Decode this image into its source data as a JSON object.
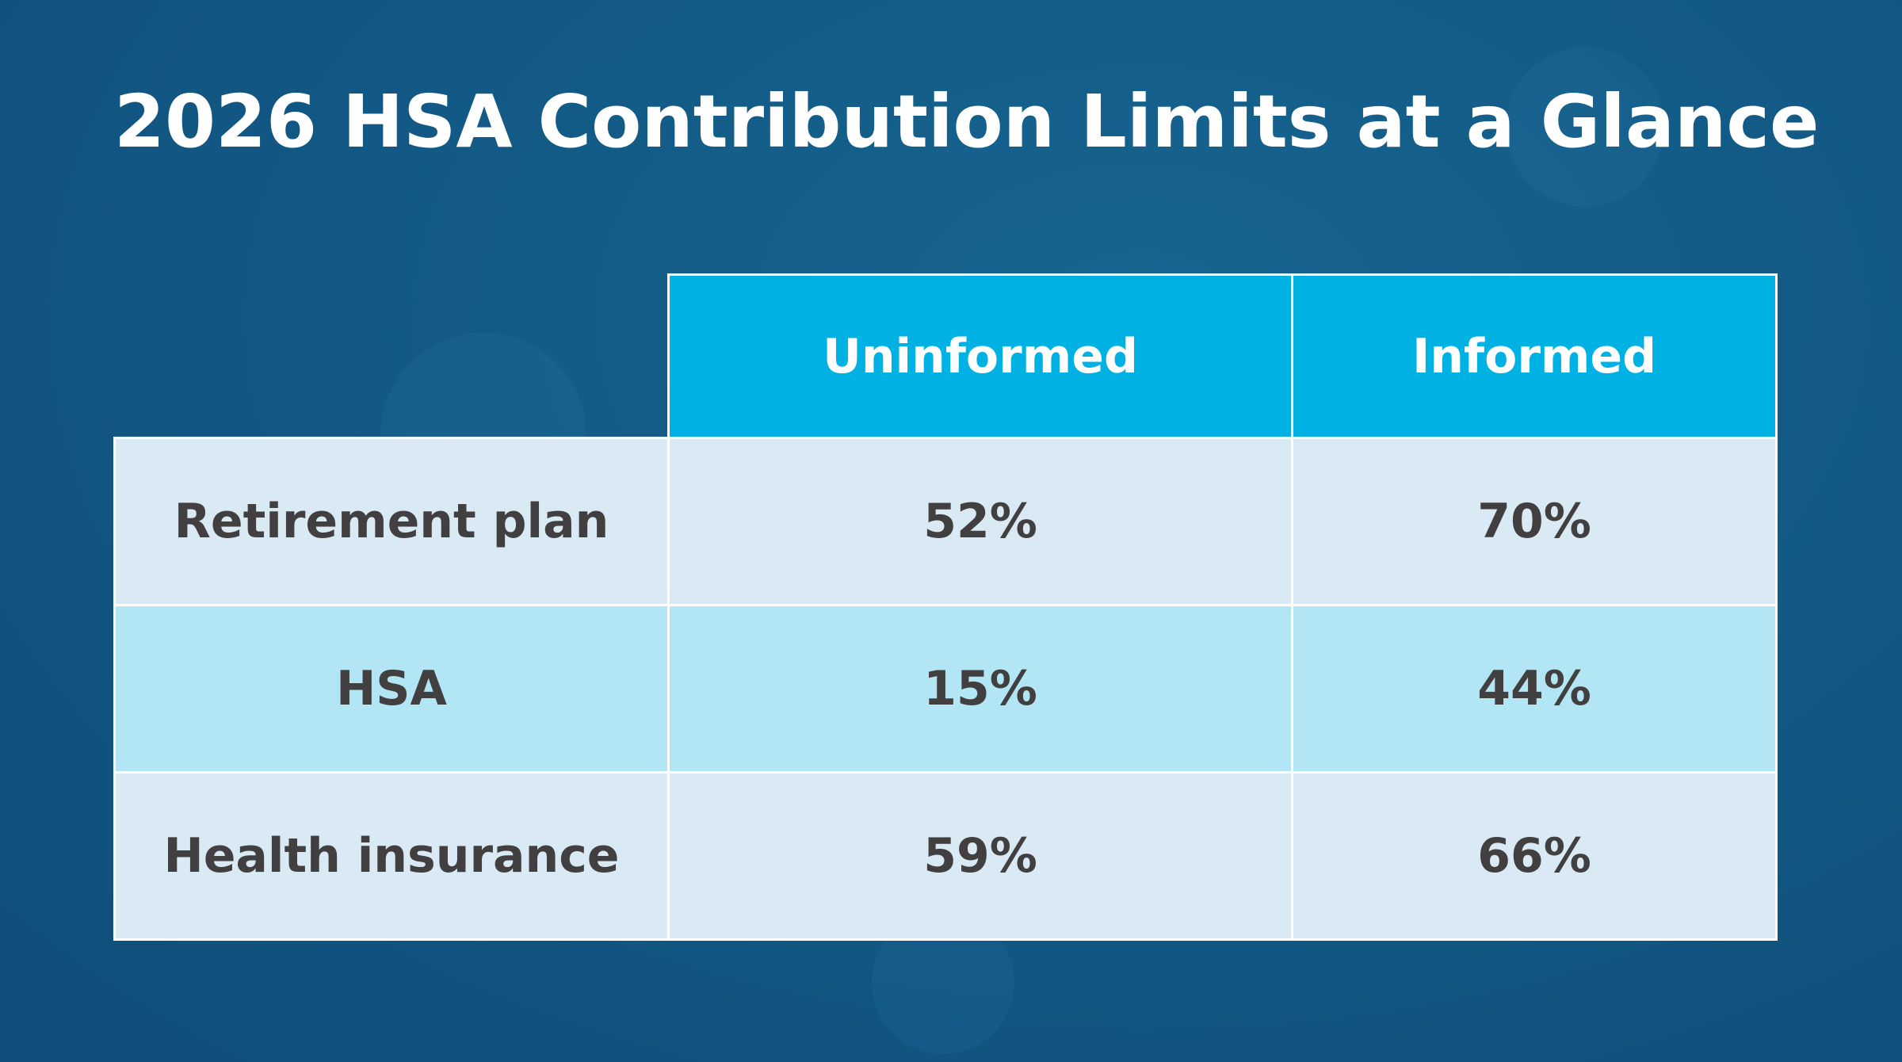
{
  "title": "2026 HSA Contribution Limits at a Glance",
  "table": {
    "columns": [
      "",
      "Uninformed",
      "Informed"
    ],
    "rows": [
      {
        "label": "Retirement plan",
        "uninformed": "52%",
        "informed": "70%"
      },
      {
        "label": "HSA",
        "uninformed": "15%",
        "informed": "44%"
      },
      {
        "label": "Health insurance",
        "uninformed": "59%",
        "informed": "66%"
      }
    ]
  },
  "colors": {
    "background": "#135b87",
    "header": "#00b2e3",
    "row_light": "#d9eaf4",
    "row_cyan": "#b2e6f4",
    "text": "#423f40"
  }
}
